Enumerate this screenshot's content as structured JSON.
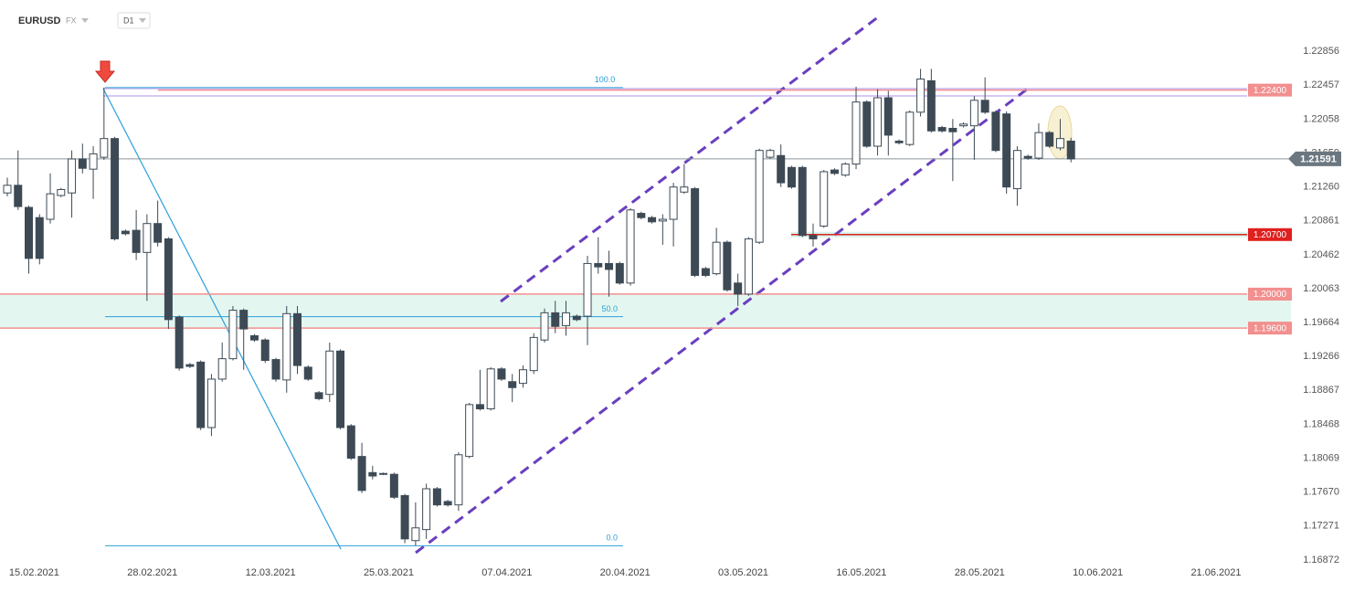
{
  "header": {
    "symbol": "EURUSD",
    "market": "FX",
    "interval": "D1"
  },
  "chart_data": {
    "type": "candlestick",
    "open": [
      1.2119,
      1.2128,
      1.2102,
      1.209,
      1.2088,
      1.2116,
      1.2119,
      1.2159,
      1.2147,
      1.2161,
      1.2183,
      1.2074,
      1.2075,
      1.2049,
      1.2083,
      1.2065,
      1.1973,
      1.1917,
      1.192,
      1.1843,
      1.19,
      1.1924,
      1.1981,
      1.1951,
      1.1946,
      1.1923,
      1.1899,
      1.1977,
      1.1914,
      1.1884,
      1.1882,
      1.1933,
      1.1845,
      1.1809,
      1.179,
      1.1789,
      1.1788,
      1.1763,
      1.171,
      1.1723,
      1.1771,
      1.1756,
      1.1752,
      1.1809,
      1.187,
      1.1865,
      1.1912,
      1.1897,
      1.1895,
      1.191,
      1.1946,
      1.1978,
      1.1963,
      1.1974,
      1.1974,
      1.2036,
      1.2036,
      1.2036,
      1.2013,
      1.2095,
      1.209,
      1.2086,
      1.2088,
      1.212,
      1.2124,
      1.203,
      1.2024,
      1.2061,
      1.2013,
      1.2,
      1.2061,
      1.2161,
      1.2163,
      1.2149,
      1.2149,
      1.2069,
      1.208,
      1.2146,
      1.214,
      1.2153,
      1.2226,
      1.2174,
      1.2231,
      1.218,
      1.2176,
      1.2214,
      1.2251,
      1.2196,
      1.2195,
      1.2198,
      1.2198,
      1.2228,
      1.2214,
      1.2212,
      1.2124,
      1.2162,
      1.216,
      1.219,
      1.2172,
      1.218
    ],
    "high": [
      1.2137,
      1.2169,
      1.2104,
      1.2094,
      1.2142,
      1.2125,
      1.2169,
      1.2177,
      1.2174,
      1.2243,
      1.2185,
      1.2076,
      1.2099,
      1.2094,
      1.211,
      1.2067,
      1.1975,
      1.1919,
      1.1922,
      1.1906,
      1.1943,
      1.1986,
      1.1983,
      1.1953,
      1.1948,
      1.1925,
      1.1986,
      1.1986,
      1.1916,
      1.1886,
      1.1943,
      1.1935,
      1.1847,
      1.1825,
      1.1798,
      1.179,
      1.179,
      1.1765,
      1.1755,
      1.1777,
      1.1773,
      1.1758,
      1.1814,
      1.1872,
      1.1911,
      1.1914,
      1.1914,
      1.1906,
      1.1916,
      1.1954,
      1.1983,
      1.1992,
      1.1992,
      1.1976,
      1.2045,
      1.2067,
      1.2051,
      1.2038,
      1.2101,
      1.2097,
      1.2092,
      1.2094,
      1.2131,
      1.2153,
      1.2126,
      1.2032,
      1.2078,
      1.2063,
      1.2024,
      1.2067,
      1.2171,
      1.2171,
      1.2176,
      1.2151,
      1.2151,
      1.2083,
      1.2146,
      1.2148,
      1.2155,
      1.2244,
      1.2228,
      1.2241,
      1.2239,
      1.2182,
      1.2216,
      1.2265,
      1.2265,
      1.2198,
      1.2206,
      1.2202,
      1.2233,
      1.2255,
      1.2216,
      1.2215,
      1.2174,
      1.2164,
      1.2201,
      1.2192,
      1.2206,
      1.2184
    ],
    "low": [
      1.2115,
      1.2099,
      1.2024,
      1.2035,
      1.2083,
      1.2114,
      1.209,
      1.2142,
      1.2112,
      1.2158,
      1.2063,
      1.2069,
      1.204,
      1.1992,
      1.2056,
      1.1959,
      1.191,
      1.1913,
      1.184,
      1.1833,
      1.1897,
      1.1922,
      1.1911,
      1.1944,
      1.1919,
      1.1897,
      1.1884,
      1.1906,
      1.1898,
      1.1875,
      1.1873,
      1.1841,
      1.1805,
      1.1766,
      1.1782,
      1.1787,
      1.1759,
      1.1707,
      1.1704,
      1.1712,
      1.175,
      1.175,
      1.1745,
      1.1807,
      1.1863,
      1.1863,
      1.1898,
      1.1873,
      1.189,
      1.1906,
      1.1943,
      1.1954,
      1.1951,
      1.1968,
      1.194,
      1.2024,
      1.1997,
      1.2011,
      1.201,
      1.2088,
      1.2083,
      1.2058,
      1.2056,
      1.2118,
      1.202,
      1.202,
      1.2022,
      1.2003,
      1.1986,
      1.1998,
      1.2059,
      1.2159,
      1.2126,
      1.2124,
      1.2067,
      1.2056,
      1.2078,
      1.214,
      1.2138,
      1.2147,
      1.2172,
      1.2163,
      1.2163,
      1.2176,
      1.2174,
      1.2209,
      1.219,
      1.219,
      1.2133,
      1.2196,
      1.2158,
      1.2212,
      1.2167,
      1.2118,
      1.2104,
      1.2158,
      1.2158,
      1.2172,
      1.2169,
      1.2155
    ],
    "close": [
      1.2128,
      1.2103,
      1.2042,
      1.2042,
      1.2118,
      1.2123,
      1.2159,
      1.2148,
      1.2165,
      1.2183,
      1.2065,
      1.2071,
      1.2049,
      1.2083,
      1.2061,
      1.197,
      1.1913,
      1.1915,
      1.1843,
      1.19,
      1.1924,
      1.1981,
      1.1959,
      1.1946,
      1.1922,
      1.19,
      1.1977,
      1.1916,
      1.19,
      1.1877,
      1.1933,
      1.1843,
      1.1807,
      1.1769,
      1.1786,
      1.1788,
      1.1761,
      1.1712,
      1.1725,
      1.1771,
      1.1752,
      1.1752,
      1.1811,
      1.187,
      1.1865,
      1.1912,
      1.19,
      1.189,
      1.1911,
      1.1949,
      1.1978,
      1.1962,
      1.1978,
      1.197,
      1.2036,
      1.2032,
      1.2029,
      1.2013,
      1.2099,
      1.209,
      1.2085,
      1.2088,
      1.2126,
      1.2126,
      1.2022,
      1.2022,
      1.2061,
      1.2005,
      1.2,
      1.2065,
      1.2169,
      1.2169,
      1.2131,
      1.2126,
      1.2069,
      1.2065,
      1.2144,
      1.2142,
      1.2153,
      1.2226,
      1.2174,
      1.2231,
      1.2187,
      1.2178,
      1.2214,
      1.2253,
      1.2192,
      1.2192,
      1.2191,
      1.22,
      1.2228,
      1.2214,
      1.2169,
      1.2126,
      1.2169,
      1.216,
      1.219,
      1.2174,
      1.2183,
      1.2159
    ],
    "up_color": "#ffffff",
    "down_color": "#3d4a55",
    "xlim": [
      -0.68,
      119.22
    ],
    "xticks": [
      {
        "value": 2.5,
        "label": "15.02.2021"
      },
      {
        "value": 13.5,
        "label": "28.02.2021"
      },
      {
        "value": 24.5,
        "label": "12.03.2021"
      },
      {
        "value": 35.5,
        "label": "25.03.2021"
      },
      {
        "value": 46.5,
        "label": "07.04.2021"
      },
      {
        "value": 57.5,
        "label": "20.04.2021"
      },
      {
        "value": 68.5,
        "label": "03.05.2021"
      },
      {
        "value": 79.5,
        "label": "16.05.2021"
      },
      {
        "value": 90.5,
        "label": "28.05.2021"
      },
      {
        "value": 101.5,
        "label": "10.06.2021"
      },
      {
        "value": 112.5,
        "label": "21.06.2021"
      }
    ],
    "ylim": [
      1.1685,
      1.2346
    ],
    "yticks": [
      1.22856,
      1.22457,
      1.22058,
      1.21659,
      {
        "value": 1.2126,
        "label": "1.21260"
      },
      1.20861,
      1.20462,
      1.20063,
      1.19664,
      1.19266,
      1.18867,
      1.18468,
      1.18069,
      {
        "value": 1.1767,
        "label": "1.17670"
      },
      1.17271,
      1.16872
    ],
    "levels": [
      {
        "value": 1.224,
        "label": "1.22400",
        "color": "#f28f8f"
      },
      {
        "value": 1.207,
        "label": "1.20700",
        "color": "#e0201e"
      },
      {
        "value": 1.2,
        "label": "1.20000",
        "color": "#f28f8f"
      },
      {
        "value": 1.196,
        "label": "1.19600",
        "color": "#f28f8f"
      }
    ],
    "last_price": 1.21591,
    "fib": {
      "high": 1.2243,
      "low": 1.1704,
      "color": "#2d9fd9",
      "levels": [
        {
          "value": 100,
          "label": "100.0"
        },
        {
          "value": 50,
          "label": "50.0"
        },
        {
          "value": 0,
          "label": "0.0"
        }
      ]
    }
  }
}
